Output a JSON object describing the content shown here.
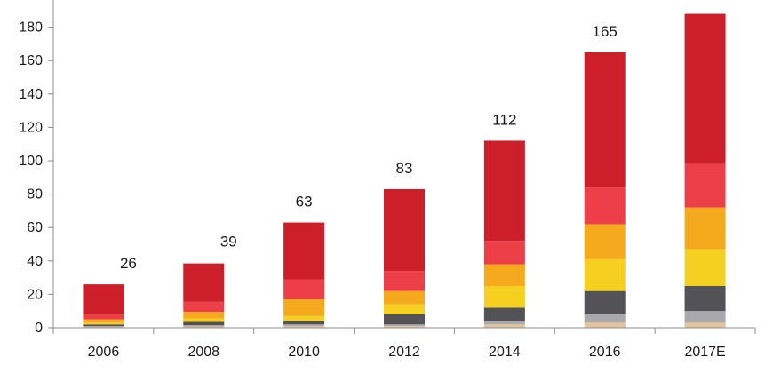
{
  "chart_data": {
    "type": "bar",
    "stacked": true,
    "categories": [
      "2006",
      "2008",
      "2010",
      "2012",
      "2014",
      "2016",
      "2017E"
    ],
    "totals": [
      "26",
      "39",
      "63",
      "83",
      "112",
      "165",
      "188"
    ],
    "ylim": [
      0,
      200
    ],
    "yticks": [
      0,
      20,
      40,
      60,
      80,
      100,
      120,
      140,
      160,
      180,
      200
    ],
    "grid": false,
    "series": [
      {
        "color": "#e3c39a",
        "values": [
          0.5,
          0.8,
          1,
          1,
          2,
          3,
          3
        ]
      },
      {
        "color": "#a9a9ad",
        "values": [
          0.5,
          0.7,
          1,
          1,
          2,
          5,
          7
        ]
      },
      {
        "color": "#525257",
        "values": [
          1,
          2,
          2,
          6,
          8,
          14,
          15
        ]
      },
      {
        "color": "#f6d020",
        "values": [
          1,
          2,
          3,
          6,
          13,
          19,
          22
        ]
      },
      {
        "color": "#f5aa1e",
        "values": [
          2,
          4,
          10,
          8,
          13,
          21,
          25
        ]
      },
      {
        "color": "#ec3f48",
        "values": [
          3,
          6,
          12,
          12,
          14,
          22,
          26
        ]
      },
      {
        "color": "#cc1f2a",
        "values": [
          18,
          23,
          34,
          49,
          60,
          81,
          90
        ]
      }
    ]
  }
}
